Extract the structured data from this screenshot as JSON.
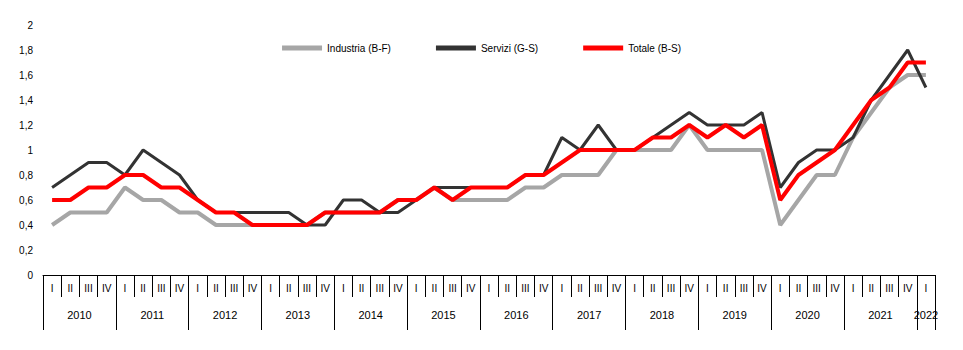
{
  "chart_data": {
    "type": "line",
    "categories": [
      "I",
      "II",
      "III",
      "IV",
      "I",
      "II",
      "III",
      "IV",
      "I",
      "II",
      "III",
      "IV",
      "I",
      "II",
      "III",
      "IV",
      "I",
      "II",
      "III",
      "IV",
      "I",
      "II",
      "III",
      "IV",
      "I",
      "II",
      "III",
      "IV",
      "I",
      "II",
      "III",
      "IV",
      "I",
      "II",
      "III",
      "IV",
      "I",
      "II",
      "III",
      "IV",
      "I",
      "II",
      "III",
      "IV",
      "I",
      "II",
      "III",
      "IV",
      "I"
    ],
    "x_groups": [
      "2010",
      "2011",
      "2012",
      "2013",
      "2014",
      "2015",
      "2016",
      "2017",
      "2018",
      "2019",
      "2020",
      "2021",
      "2022"
    ],
    "series": [
      {
        "name": "Industria (B-F)",
        "color": "#a6a6a6",
        "values": [
          0.4,
          0.5,
          0.5,
          0.5,
          0.7,
          0.6,
          0.6,
          0.5,
          0.5,
          0.4,
          0.4,
          0.4,
          0.4,
          0.4,
          0.4,
          0.5,
          0.5,
          0.5,
          0.5,
          0.6,
          0.6,
          0.7,
          0.6,
          0.6,
          0.6,
          0.6,
          0.7,
          0.7,
          0.8,
          0.8,
          0.8,
          1.0,
          1.0,
          1.0,
          1.0,
          1.2,
          1.0,
          1.0,
          1.0,
          1.0,
          0.4,
          0.6,
          0.8,
          0.8,
          1.1,
          1.3,
          1.5,
          1.6,
          1.6
        ]
      },
      {
        "name": "Servizi (G-S)",
        "color": "#333333",
        "values": [
          0.7,
          0.8,
          0.9,
          0.9,
          0.8,
          1.0,
          0.9,
          0.8,
          0.6,
          0.5,
          0.5,
          0.5,
          0.5,
          0.5,
          0.4,
          0.4,
          0.6,
          0.6,
          0.5,
          0.5,
          0.6,
          0.7,
          0.7,
          0.7,
          0.7,
          0.7,
          0.8,
          0.8,
          1.1,
          1.0,
          1.2,
          1.0,
          1.0,
          1.1,
          1.2,
          1.3,
          1.2,
          1.2,
          1.2,
          1.3,
          0.7,
          0.9,
          1.0,
          1.0,
          1.1,
          1.4,
          1.6,
          1.8,
          1.5
        ]
      },
      {
        "name": "Totale (B-S)",
        "color": "#ff0000",
        "values": [
          0.6,
          0.6,
          0.7,
          0.7,
          0.8,
          0.8,
          0.7,
          0.7,
          0.6,
          0.5,
          0.5,
          0.4,
          0.4,
          0.4,
          0.4,
          0.5,
          0.5,
          0.5,
          0.5,
          0.6,
          0.6,
          0.7,
          0.6,
          0.7,
          0.7,
          0.7,
          0.8,
          0.8,
          0.9,
          1.0,
          1.0,
          1.0,
          1.0,
          1.1,
          1.1,
          1.2,
          1.1,
          1.2,
          1.1,
          1.2,
          0.6,
          0.8,
          0.9,
          1.0,
          1.2,
          1.4,
          1.5,
          1.7,
          1.7
        ]
      }
    ],
    "ylim": [
      0,
      2
    ],
    "yticks": [
      0,
      {
        "value": 0.2,
        "label": "0,2"
      },
      {
        "value": 0.4,
        "label": "0,4"
      },
      {
        "value": 0.6,
        "label": "0,6"
      },
      {
        "value": 0.8,
        "label": "0,8"
      },
      1,
      {
        "value": 1.2,
        "label": "1,2"
      },
      {
        "value": 1.4,
        "label": "1,4"
      },
      {
        "value": 1.6,
        "label": "1,6"
      },
      {
        "value": 1.8,
        "label": "1,8"
      },
      2
    ],
    "grid": false,
    "legend": "top"
  }
}
